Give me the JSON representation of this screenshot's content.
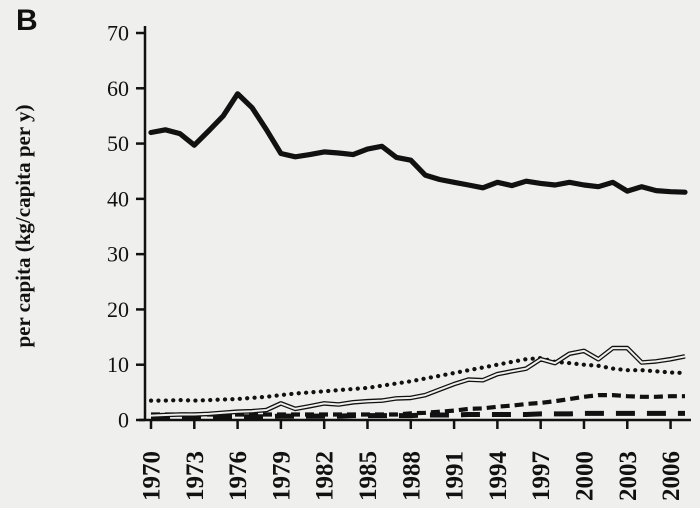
{
  "panel_label": "B",
  "chart_data": {
    "type": "line",
    "title": "",
    "xlabel": "",
    "ylabel": "per capita (kg/capita per y)",
    "ylim": [
      0,
      70
    ],
    "yticks": [
      0,
      10,
      20,
      30,
      40,
      50,
      60,
      70
    ],
    "xticks": [
      1970,
      1973,
      1976,
      1979,
      1982,
      1985,
      1988,
      1991,
      1994,
      1997,
      2000,
      2003,
      2006
    ],
    "grid": false,
    "legend": "none",
    "line_color": "#111111",
    "background_color": "#efefee",
    "x": [
      1970,
      1971,
      1972,
      1973,
      1974,
      1975,
      1976,
      1977,
      1978,
      1979,
      1980,
      1981,
      1982,
      1983,
      1984,
      1985,
      1986,
      1987,
      1988,
      1989,
      1990,
      1991,
      1992,
      1993,
      1994,
      1995,
      1996,
      1997,
      1998,
      1999,
      2000,
      2001,
      2002,
      2003,
      2004,
      2005,
      2006,
      2007
    ],
    "series": [
      {
        "name": "dotted-series",
        "style": "dotted",
        "values": [
          3.5,
          3.5,
          3.6,
          3.5,
          3.6,
          3.7,
          3.8,
          4,
          4.2,
          4.5,
          4.8,
          5,
          5.2,
          5.4,
          5.6,
          5.8,
          6.2,
          6.6,
          7,
          7.5,
          8,
          8.5,
          9,
          9.5,
          10,
          10.5,
          11,
          11.2,
          10.5,
          10.3,
          10,
          9.8,
          9.3,
          9,
          9,
          8.8,
          8.6,
          8.5
        ]
      },
      {
        "name": "medium-dashed-series",
        "style": "dashed",
        "values": [
          1,
          1,
          1,
          1,
          1,
          1,
          1,
          1,
          1,
          1,
          1,
          1,
          1,
          1,
          1,
          1,
          1,
          1,
          1.2,
          1.3,
          1.5,
          1.7,
          2,
          2.1,
          2.4,
          2.6,
          2.9,
          3.1,
          3.4,
          3.8,
          4.2,
          4.5,
          4.5,
          4.3,
          4.2,
          4.2,
          4.3,
          4.3
        ]
      },
      {
        "name": "long-dashed-series",
        "style": "long-dash",
        "values": [
          0.5,
          0.5,
          0.5,
          0.5,
          0.5,
          0.6,
          0.6,
          0.6,
          0.6,
          0.7,
          0.7,
          0.7,
          0.7,
          0.7,
          0.8,
          0.8,
          0.8,
          0.8,
          0.8,
          0.9,
          0.9,
          0.9,
          1,
          1,
          1,
          1,
          1,
          1.1,
          1.1,
          1.1,
          1.2,
          1.2,
          1.2,
          1.2,
          1.2,
          1.2,
          1.2,
          1.2
        ]
      },
      {
        "name": "double-line-series",
        "style": "double",
        "values": [
          0.8,
          0.9,
          1,
          1,
          1.1,
          1.3,
          1.5,
          1.6,
          1.8,
          3,
          2,
          2.5,
          3,
          2.8,
          3.2,
          3.4,
          3.5,
          3.9,
          4,
          4.5,
          5.5,
          6.5,
          7.3,
          7.2,
          8.3,
          8.8,
          9.3,
          11,
          10.3,
          12,
          12.5,
          11,
          13,
          13,
          10.4,
          10.6,
          11,
          11.5
        ]
      },
      {
        "name": "thick-solid-series",
        "style": "solid-thick",
        "values": [
          52,
          52.5,
          51.8,
          49.7,
          52.3,
          55,
          59,
          56.5,
          52.5,
          48.2,
          47.6,
          48,
          48.5,
          48.3,
          48,
          49,
          49.5,
          47.5,
          47,
          44.3,
          43.5,
          43,
          42.5,
          42,
          43,
          42.4,
          43.2,
          42.8,
          42.5,
          43,
          42.5,
          42.2,
          43,
          41.4,
          42.2,
          41.5,
          41.3,
          41.2
        ]
      }
    ]
  }
}
